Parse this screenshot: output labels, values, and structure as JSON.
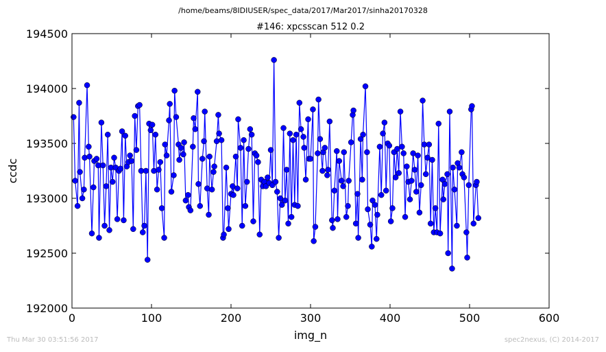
{
  "chart_data": {
    "type": "line",
    "suptitle": "/home/beams/8IDIUSER/spec_data/2017/Mar2017/sinha20170328",
    "title": "#146: xpcsscan 512 0.2",
    "xlabel": "img_n",
    "ylabel": "ccdc",
    "footer_left": "Thu Mar 30 03:51:56 2017",
    "footer_right": "spec2nexus, (C) 2014-2017",
    "color": "#0000ff",
    "marker": "circle",
    "xlim": [
      0,
      600
    ],
    "xticks": [
      0,
      100,
      200,
      300,
      400,
      500,
      600
    ],
    "ylim": [
      192000,
      194500
    ],
    "yticks": [
      192000,
      192500,
      193000,
      193500,
      194000,
      194500
    ],
    "x": [
      2,
      4,
      7,
      9,
      10,
      13,
      15,
      16,
      19,
      21,
      22,
      25,
      27,
      28,
      31,
      33,
      34,
      37,
      39,
      41,
      43,
      45,
      47,
      49,
      51,
      53,
      55,
      57,
      59,
      61,
      63,
      65,
      67,
      69,
      71,
      73,
      75,
      77,
      79,
      81,
      83,
      85,
      87,
      89,
      91,
      93,
      95,
      97,
      99,
      101,
      103,
      105,
      107,
      109,
      111,
      113,
      116,
      117,
      119,
      122,
      123,
      125,
      128,
      129,
      131,
      134,
      135,
      137,
      140,
      141,
      143,
      146,
      147,
      149,
      152,
      153,
      155,
      158,
      159,
      161,
      164,
      166,
      167,
      170,
      172,
      173,
      176,
      178,
      179,
      182,
      184,
      185,
      188,
      190,
      191,
      194,
      196,
      197,
      200,
      202,
      203,
      206,
      208,
      209,
      212,
      214,
      216,
      218,
      220,
      222,
      224,
      226,
      228,
      230,
      232,
      234,
      236,
      238,
      240,
      242,
      244,
      246,
      248,
      250,
      252,
      254,
      256,
      258,
      260,
      262,
      264,
      266,
      268,
      270,
      272,
      274,
      276,
      278,
      280,
      282,
      284,
      286,
      288,
      291,
      292,
      294,
      297,
      298,
      300,
      303,
      304,
      306,
      309,
      310,
      312,
      315,
      316,
      318,
      321,
      322,
      324,
      327,
      328,
      330,
      333,
      334,
      336,
      339,
      341,
      342,
      345,
      347,
      348,
      351,
      353,
      354,
      357,
      359,
      360,
      363,
      365,
      366,
      369,
      371,
      372,
      375,
      377,
      378,
      381,
      383,
      384,
      387,
      389,
      391,
      393,
      395,
      397,
      399,
      401,
      403,
      405,
      407,
      409,
      411,
      413,
      415,
      417,
      419,
      421,
      423,
      425,
      427,
      429,
      431,
      433,
      435,
      437,
      439,
      441,
      443,
      445,
      447,
      449,
      451,
      453,
      455,
      457,
      459,
      461,
      463,
      466,
      467,
      469,
      472,
      473,
      475,
      478,
      479,
      481,
      484,
      485,
      487,
      490,
      491,
      493,
      496,
      497,
      499,
      502,
      503,
      505,
      508,
      509,
      511
    ],
    "values": [
      193740,
      193160,
      192930,
      193870,
      193240,
      193000,
      193080,
      193370,
      194030,
      193470,
      193380,
      192680,
      193100,
      193340,
      193360,
      193300,
      192640,
      193690,
      193300,
      192750,
      193110,
      193580,
      192710,
      193280,
      193150,
      193370,
      193280,
      192810,
      193250,
      193270,
      193610,
      192800,
      193570,
      193290,
      193330,
      193390,
      193340,
      192720,
      193750,
      193440,
      193840,
      193850,
      193250,
      192690,
      192750,
      193250,
      192440,
      193680,
      193620,
      193670,
      193250,
      193580,
      193080,
      193260,
      193330,
      192910,
      192640,
      193490,
      193390,
      193710,
      193860,
      193060,
      193210,
      193980,
      193740,
      193490,
      193350,
      193460,
      193400,
      193510,
      192980,
      193030,
      192920,
      192890,
      193470,
      193730,
      193630,
      193970,
      193130,
      192930,
      193360,
      193520,
      193790,
      193090,
      192850,
      193380,
      193080,
      193240,
      193290,
      193520,
      193760,
      193590,
      193530,
      192640,
      192670,
      193280,
      192910,
      192720,
      193040,
      193110,
      193030,
      193380,
      193090,
      193720,
      193460,
      192750,
      193530,
      192930,
      193150,
      193450,
      193630,
      193580,
      192790,
      193410,
      193390,
      193330,
      192670,
      193170,
      193110,
      193150,
      193110,
      193190,
      193140,
      193440,
      193120,
      194260,
      193150,
      193060,
      192640,
      193000,
      192940,
      193640,
      192980,
      193260,
      192770,
      193590,
      192830,
      193530,
      192940,
      193580,
      192930,
      193870,
      193630,
      193560,
      193460,
      193170,
      193720,
      193360,
      193360,
      193810,
      192610,
      192740,
      193410,
      193900,
      193540,
      193250,
      193420,
      193460,
      193210,
      193260,
      193700,
      192800,
      192730,
      193070,
      193430,
      192810,
      193340,
      193160,
      193110,
      193420,
      192830,
      192930,
      193160,
      193510,
      193760,
      193800,
      192770,
      193040,
      192640,
      193540,
      193170,
      193580,
      194020,
      193420,
      192900,
      192760,
      192560,
      192980,
      192940,
      192630,
      192850,
      193470,
      193030,
      193590,
      193690,
      193070,
      193500,
      193480,
      192790,
      192910,
      193420,
      193190,
      193450,
      193230,
      193790,
      193470,
      193410,
      192830,
      193290,
      193150,
      192990,
      193160,
      193410,
      193260,
      193060,
      193390,
      192870,
      193120,
      193890,
      193490,
      193220,
      193370,
      193490,
      192770,
      193350,
      192690,
      192910,
      192690,
      193680,
      192680,
      193170,
      192990,
      193130,
      193220,
      192500,
      193790,
      192360,
      193280,
      193080,
      192750,
      193320,
      193280,
      193420,
      193220,
      193190,
      192690,
      192460,
      193120,
      193810,
      193840,
      192770,
      193120,
      193150,
      192820
    ]
  }
}
